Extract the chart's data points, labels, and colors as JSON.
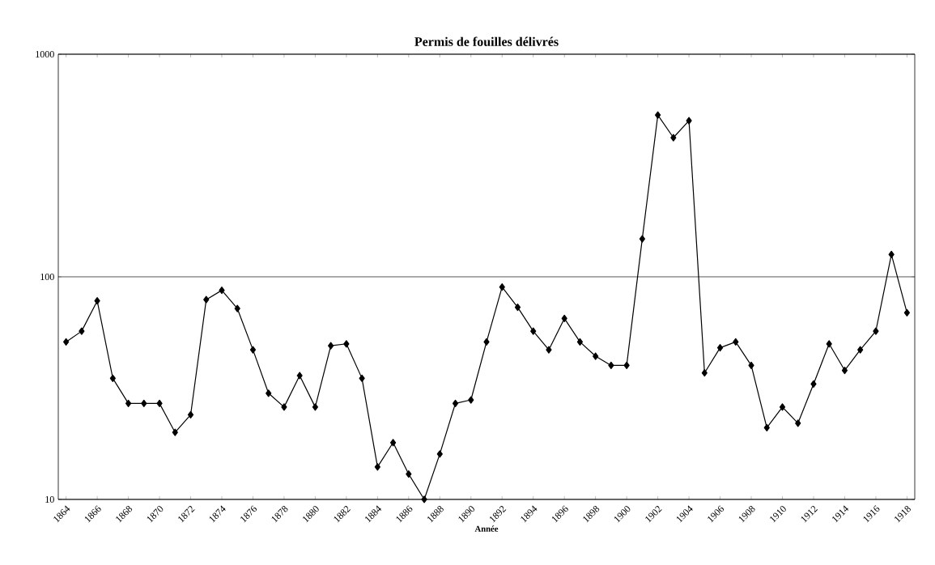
{
  "chart_data": {
    "type": "line",
    "title": "Permis de fouilles délivrés",
    "xlabel": "Année",
    "x": [
      1864,
      1865,
      1866,
      1867,
      1868,
      1869,
      1870,
      1871,
      1872,
      1873,
      1874,
      1875,
      1876,
      1877,
      1878,
      1879,
      1880,
      1881,
      1882,
      1883,
      1884,
      1885,
      1886,
      1887,
      1888,
      1889,
      1890,
      1891,
      1892,
      1893,
      1894,
      1895,
      1896,
      1897,
      1898,
      1899,
      1900,
      1901,
      1902,
      1903,
      1904,
      1905,
      1906,
      1907,
      1908,
      1909,
      1910,
      1911,
      1912,
      1913,
      1914,
      1915,
      1916,
      1917,
      1918
    ],
    "series": [
      {
        "color": "#000000",
        "values": [
          51,
          57,
          78,
          35,
          27,
          27,
          27,
          20,
          24,
          79,
          87,
          72,
          47,
          30,
          26,
          36,
          26,
          49,
          50,
          35,
          14,
          18,
          13,
          10,
          16,
          27,
          28,
          51,
          90,
          73,
          57,
          47,
          65,
          51,
          44,
          40,
          40,
          148,
          533,
          422,
          503,
          37,
          48,
          51,
          40,
          21,
          26,
          22,
          33,
          50,
          38,
          47,
          57,
          126,
          69
        ]
      }
    ],
    "xlim": [
      1863.5,
      1918.5
    ],
    "xticks": [
      1864,
      1866,
      1868,
      1870,
      1872,
      1874,
      1876,
      1878,
      1880,
      1882,
      1884,
      1886,
      1888,
      1890,
      1892,
      1894,
      1896,
      1898,
      1900,
      1902,
      1904,
      1906,
      1908,
      1910,
      1912,
      1914,
      1916,
      1918
    ],
    "ylim": [
      10,
      1000
    ],
    "yticks": [
      10,
      100,
      1000
    ],
    "log": "y",
    "grid": "y",
    "marker": "diamond",
    "line_style": "solid"
  }
}
